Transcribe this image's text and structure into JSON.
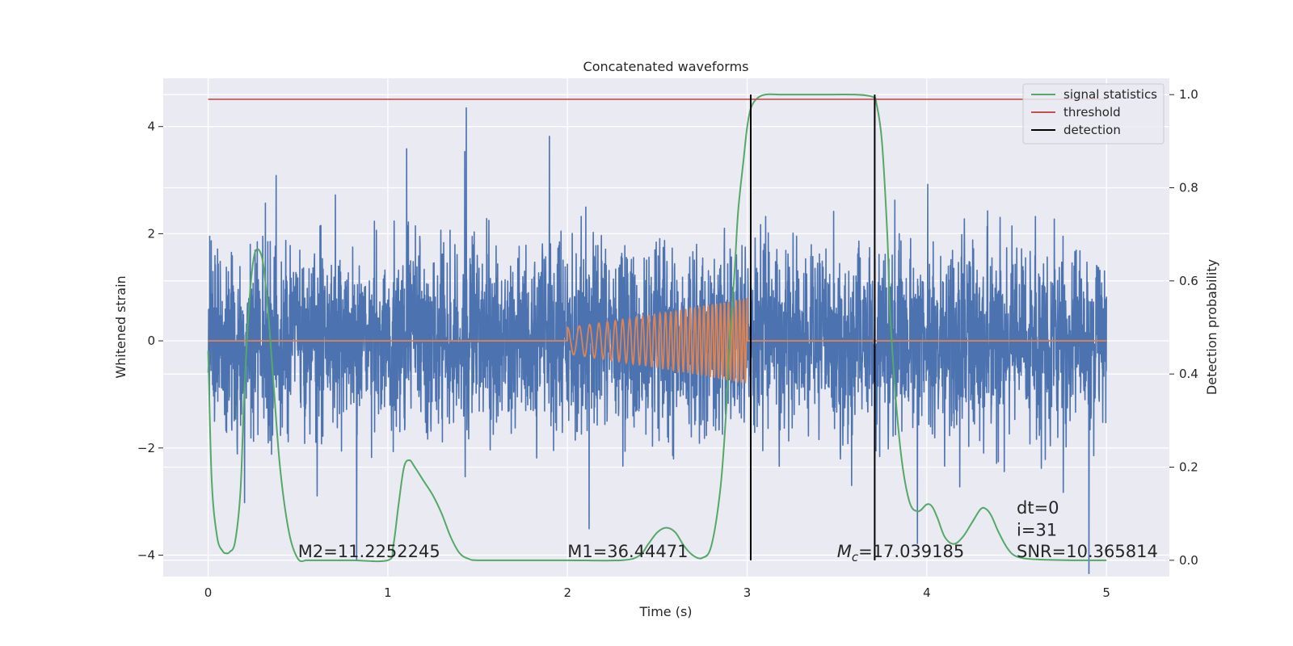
{
  "chart_data": {
    "type": "line",
    "title": "Concatenated waveforms",
    "xlabel": "Time (s)",
    "ylabel": "Whitened strain",
    "y2label": "Detection probability",
    "xlim": [
      -0.25,
      5.35
    ],
    "ylim": [
      -4.4,
      4.9
    ],
    "y2lim": [
      -0.035,
      1.035
    ],
    "xticks": [
      0,
      1,
      2,
      3,
      4,
      5
    ],
    "yticks": [
      -4,
      -2,
      0,
      2,
      4
    ],
    "y2ticks": [
      0.0,
      0.2,
      0.4,
      0.6,
      0.8,
      1.0
    ],
    "ytick_labels": [
      "−4",
      "−2",
      "0",
      "2",
      "4"
    ],
    "y2tick_labels": [
      "0.0",
      "0.2",
      "0.4",
      "0.6",
      "0.8",
      "1.0"
    ],
    "grid": true,
    "legend_position": "top-right",
    "legend": [
      {
        "label": "signal statistics",
        "color": "#55a868"
      },
      {
        "label": "threshold",
        "color": "#c44e52"
      },
      {
        "label": "detection",
        "color": "#000000"
      }
    ],
    "series": [
      {
        "kind": "whitened-strain",
        "axis": "left",
        "color": "#4c72b0",
        "x_range": [
          0,
          5
        ],
        "noise_sigma": 0.85,
        "approx_peak": 4.4
      },
      {
        "kind": "injected-chirp",
        "axis": "left",
        "color": "#dd8452",
        "x_range": [
          2,
          3
        ],
        "start_amplitude": 0.25,
        "end_amplitude": 0.8
      },
      {
        "name": "signal statistics",
        "axis": "right",
        "color": "#55a868",
        "x": [
          0,
          0.02,
          0.05,
          0.08,
          0.1,
          0.12,
          0.15,
          0.18,
          0.2,
          0.23,
          0.26,
          0.3,
          0.33,
          0.36,
          0.4,
          0.45,
          0.5,
          0.55,
          0.6,
          0.8,
          1.0,
          1.03,
          1.06,
          1.09,
          1.12,
          1.15,
          1.2,
          1.25,
          1.3,
          1.35,
          1.4,
          1.45,
          1.5,
          1.7,
          2.0,
          2.3,
          2.4,
          2.45,
          2.5,
          2.55,
          2.6,
          2.65,
          2.7,
          2.75,
          2.8,
          2.85,
          2.88,
          2.9,
          2.93,
          2.95,
          2.98,
          3.0,
          3.02,
          3.05,
          3.1,
          3.2,
          3.4,
          3.6,
          3.7,
          3.72,
          3.75,
          3.78,
          3.8,
          3.85,
          3.9,
          3.95,
          4.0,
          4.03,
          4.06,
          4.1,
          4.15,
          4.2,
          4.25,
          4.3,
          4.33,
          4.36,
          4.4,
          4.45,
          4.5,
          4.6,
          4.8,
          5.0
        ],
        "values": [
          0.45,
          0.17,
          0.05,
          0.02,
          0.015,
          0.018,
          0.04,
          0.15,
          0.35,
          0.56,
          0.66,
          0.65,
          0.55,
          0.4,
          0.2,
          0.06,
          0.003,
          0.0,
          0.0,
          0.0,
          0.0,
          0.03,
          0.12,
          0.2,
          0.215,
          0.2,
          0.17,
          0.14,
          0.1,
          0.05,
          0.015,
          0.003,
          0.0,
          0.0,
          0.0,
          0.0,
          0.01,
          0.035,
          0.06,
          0.07,
          0.06,
          0.03,
          0.01,
          0.005,
          0.03,
          0.15,
          0.3,
          0.45,
          0.62,
          0.75,
          0.86,
          0.93,
          0.97,
          0.99,
          1.0,
          1.0,
          1.0,
          1.0,
          0.995,
          0.98,
          0.9,
          0.7,
          0.5,
          0.25,
          0.13,
          0.105,
          0.12,
          0.115,
          0.09,
          0.05,
          0.035,
          0.05,
          0.08,
          0.11,
          0.11,
          0.095,
          0.06,
          0.025,
          0.008,
          0.002,
          0.0,
          0.0
        ]
      },
      {
        "name": "threshold",
        "axis": "right",
        "color": "#c44e52",
        "x": [
          0,
          5
        ],
        "values": [
          0.99,
          0.99
        ]
      },
      {
        "name": "detection",
        "axis": "right",
        "color": "#000000",
        "vlines_x": [
          3.02,
          3.71
        ],
        "vline_range": [
          0.0,
          1.0
        ]
      }
    ],
    "annotations": [
      {
        "label": "M2=11.2252245",
        "x": 0.5,
        "y": -3.93
      },
      {
        "label": "M1=36.44471",
        "x": 2.0,
        "y": -3.93
      },
      {
        "label": "Mc_label",
        "x": 3.5,
        "y": -3.93
      },
      {
        "label": "dt=0",
        "x": 4.5,
        "y": -3.12
      },
      {
        "label": "i=31",
        "x": 4.5,
        "y": -3.53
      },
      {
        "label": "SNR=10.365814",
        "x": 4.5,
        "y": -3.93
      }
    ],
    "mc_label": {
      "symbol": "M",
      "subscript": "c",
      "value": "=17.039185"
    }
  }
}
